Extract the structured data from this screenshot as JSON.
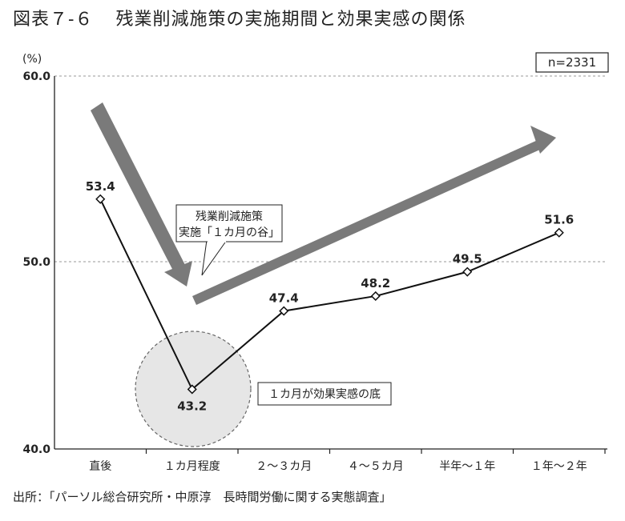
{
  "figure_label": "図表７-６",
  "title": "残業削減施策の実施期間と効果実感の関係",
  "source": "出所：「パーソル総合研究所・中原淳　長時間労働に関する実態調査」",
  "chart_data": {
    "type": "line",
    "y_unit": "(%)",
    "sample_note": "n=2331",
    "categories": [
      "直後",
      "１カ月程度",
      "２～３カ月",
      "４～５カ月",
      "半年～１年",
      "１年～２年"
    ],
    "values": [
      53.4,
      43.2,
      47.4,
      48.2,
      49.5,
      51.6
    ],
    "value_labels": [
      "53.4",
      "43.2",
      "47.4",
      "48.2",
      "49.5",
      "51.6"
    ],
    "ylim": [
      40.0,
      60.0
    ],
    "yticks": [
      "40.0",
      "50.0",
      "60.0"
    ],
    "gridlines": [
      50.0,
      60.0
    ],
    "annotations": {
      "callout_line1": "残業削減施策",
      "callout_line2": "実施「１カ月の谷」",
      "valley_note": "１カ月が効果実感の底"
    }
  }
}
